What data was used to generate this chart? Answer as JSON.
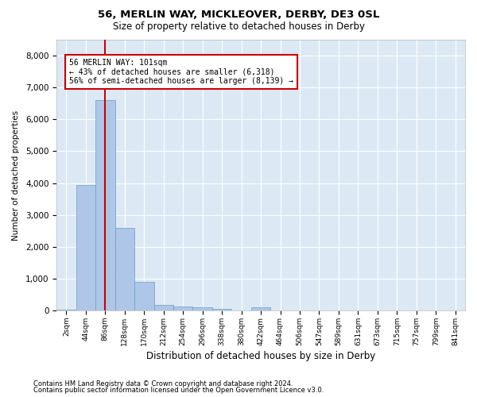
{
  "title1": "56, MERLIN WAY, MICKLEOVER, DERBY, DE3 0SL",
  "title2": "Size of property relative to detached houses in Derby",
  "xlabel": "Distribution of detached houses by size in Derby",
  "ylabel": "Number of detached properties",
  "footnote1": "Contains HM Land Registry data © Crown copyright and database right 2024.",
  "footnote2": "Contains public sector information licensed under the Open Government Licence v3.0.",
  "bin_labels": [
    "2sqm",
    "44sqm",
    "86sqm",
    "128sqm",
    "170sqm",
    "212sqm",
    "254sqm",
    "296sqm",
    "338sqm",
    "380sqm",
    "422sqm",
    "464sqm",
    "506sqm",
    "547sqm",
    "589sqm",
    "631sqm",
    "673sqm",
    "715sqm",
    "757sqm",
    "799sqm",
    "841sqm"
  ],
  "bar_values": [
    30,
    3950,
    6600,
    2600,
    900,
    180,
    130,
    100,
    60,
    0,
    110,
    0,
    0,
    0,
    0,
    0,
    0,
    0,
    0,
    0,
    0
  ],
  "bar_color": "#aec6e8",
  "bar_edge_color": "#6a9fc0",
  "background_color": "#dce9f5",
  "grid_color": "#ffffff",
  "red_line_x": 2.0,
  "red_line_color": "#cc0000",
  "annotation_text": "56 MERLIN WAY: 101sqm\n← 43% of detached houses are smaller (6,318)\n56% of semi-detached houses are larger (8,139) →",
  "annotation_box_color": "#ffffff",
  "annotation_box_edge_color": "#cc0000",
  "ylim": [
    0,
    8500
  ],
  "yticks": [
    0,
    1000,
    2000,
    3000,
    4000,
    5000,
    6000,
    7000,
    8000
  ],
  "fig_width": 6.0,
  "fig_height": 5.0,
  "fig_dpi": 100
}
